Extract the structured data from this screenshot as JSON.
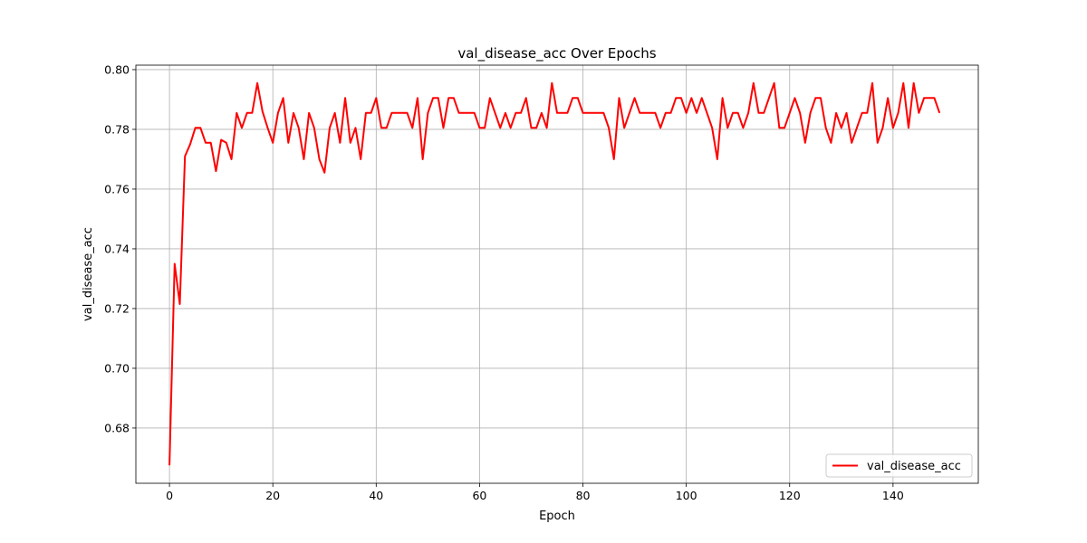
{
  "chart_data": {
    "type": "line",
    "title": "val_disease_acc Over Epochs",
    "xlabel": "Epoch",
    "ylabel": "val_disease_acc",
    "xlim": [
      -6.5,
      156.5
    ],
    "ylim": [
      0.6615,
      0.8015
    ],
    "xticks": [
      0,
      20,
      40,
      60,
      80,
      100,
      120,
      140
    ],
    "yticks": [
      0.68,
      0.7,
      0.72,
      0.74,
      0.76,
      0.78,
      0.8
    ],
    "grid": true,
    "legend_position": "lower-right",
    "series": [
      {
        "name": "val_disease_acc",
        "color": "#ff0000",
        "x": [
          0,
          1,
          2,
          3,
          4,
          5,
          6,
          7,
          8,
          9,
          10,
          11,
          12,
          13,
          14,
          15,
          16,
          17,
          18,
          19,
          20,
          21,
          22,
          23,
          24,
          25,
          26,
          27,
          28,
          29,
          30,
          31,
          32,
          33,
          34,
          35,
          36,
          37,
          38,
          39,
          40,
          41,
          42,
          43,
          44,
          45,
          46,
          47,
          48,
          49,
          50,
          51,
          52,
          53,
          54,
          55,
          56,
          57,
          58,
          59,
          60,
          61,
          62,
          63,
          64,
          65,
          66,
          67,
          68,
          69,
          70,
          71,
          72,
          73,
          74,
          75,
          76,
          77,
          78,
          79,
          80,
          81,
          82,
          83,
          84,
          85,
          86,
          87,
          88,
          89,
          90,
          91,
          92,
          93,
          94,
          95,
          96,
          97,
          98,
          99,
          100,
          101,
          102,
          103,
          104,
          105,
          106,
          107,
          108,
          109,
          110,
          111,
          112,
          113,
          114,
          115,
          116,
          117,
          118,
          119,
          120,
          121,
          122,
          123,
          124,
          125,
          126,
          127,
          128,
          129,
          130,
          131,
          132,
          133,
          134,
          135,
          136,
          137,
          138,
          139,
          140,
          141,
          142,
          143,
          144,
          145,
          146,
          147,
          148,
          149
        ],
        "values": [
          0.6675,
          0.735,
          0.7215,
          0.771,
          0.775,
          0.7805,
          0.7805,
          0.7755,
          0.7755,
          0.766,
          0.7765,
          0.7755,
          0.77,
          0.7855,
          0.7805,
          0.7855,
          0.7855,
          0.7955,
          0.786,
          0.7805,
          0.7755,
          0.7855,
          0.7905,
          0.7755,
          0.7855,
          0.7805,
          0.77,
          0.7855,
          0.7805,
          0.77,
          0.7655,
          0.7805,
          0.7855,
          0.7755,
          0.7905,
          0.7755,
          0.7805,
          0.77,
          0.7855,
          0.7855,
          0.7905,
          0.7805,
          0.7805,
          0.7855,
          0.7855,
          0.7855,
          0.7855,
          0.7805,
          0.7905,
          0.77,
          0.7855,
          0.7905,
          0.7905,
          0.7805,
          0.7905,
          0.7905,
          0.7855,
          0.7855,
          0.7855,
          0.7855,
          0.7805,
          0.7805,
          0.7905,
          0.7855,
          0.7805,
          0.7855,
          0.7805,
          0.7855,
          0.7855,
          0.7905,
          0.7805,
          0.7805,
          0.7855,
          0.7805,
          0.7955,
          0.7855,
          0.7855,
          0.7855,
          0.7905,
          0.7905,
          0.7855,
          0.7855,
          0.7855,
          0.7855,
          0.7855,
          0.7805,
          0.77,
          0.7905,
          0.7805,
          0.7855,
          0.7905,
          0.7855,
          0.7855,
          0.7855,
          0.7855,
          0.7805,
          0.7855,
          0.7855,
          0.7905,
          0.7905,
          0.7855,
          0.7905,
          0.7855,
          0.7905,
          0.7855,
          0.7805,
          0.77,
          0.7905,
          0.7805,
          0.7855,
          0.7855,
          0.7805,
          0.7855,
          0.7955,
          0.7855,
          0.7855,
          0.7905,
          0.7955,
          0.7805,
          0.7805,
          0.7855,
          0.7905,
          0.7855,
          0.7755,
          0.7855,
          0.7905,
          0.7905,
          0.7805,
          0.7755,
          0.7855,
          0.7805,
          0.7855,
          0.7755,
          0.7805,
          0.7855,
          0.7855,
          0.7955,
          0.7755,
          0.7805,
          0.7905,
          0.7805,
          0.7855,
          0.7955,
          0.7805,
          0.7955,
          0.7855,
          0.7905,
          0.7905,
          0.7905,
          0.7855
        ]
      }
    ]
  }
}
